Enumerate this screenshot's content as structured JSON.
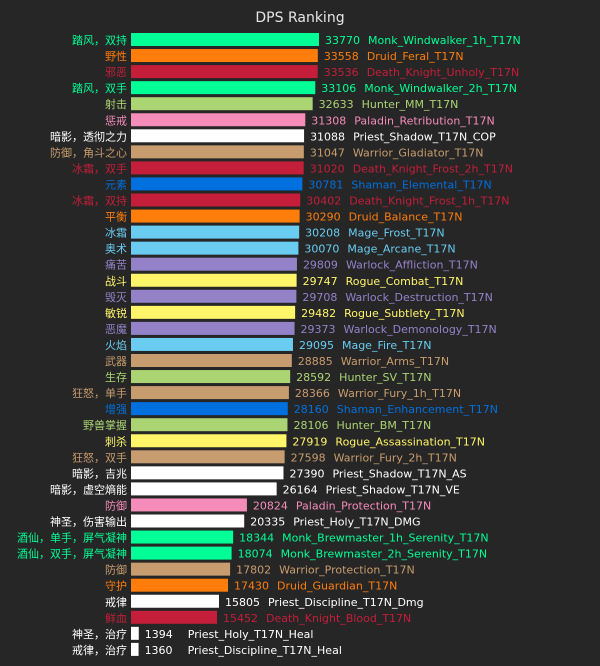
{
  "chart_data": {
    "type": "bar",
    "orientation": "horizontal",
    "title": "DPS Ranking",
    "xlabel": "",
    "ylabel": "",
    "xlim": [
      0,
      33770
    ],
    "grid": false,
    "legend": "none",
    "bars": [
      {
        "spec": "踏风，双持",
        "value": 33770,
        "name": "Monk_Windwalker_1h_T17N",
        "color": "#00ff96"
      },
      {
        "spec": "野性",
        "value": 33558,
        "name": "Druid_Feral_T17N",
        "color": "#ff7d0a"
      },
      {
        "spec": "邪恶",
        "value": 33536,
        "name": "Death_Knight_Unholy_T17N",
        "color": "#c41e3a"
      },
      {
        "spec": "踏风，双手",
        "value": 33106,
        "name": "Monk_Windwalker_2h_T17N",
        "color": "#00ff96"
      },
      {
        "spec": "射击",
        "value": 32633,
        "name": "Hunter_MM_T17N",
        "color": "#abd473"
      },
      {
        "spec": "惩戒",
        "value": 31308,
        "name": "Paladin_Retribution_T17N",
        "color": "#f58cba"
      },
      {
        "spec": "暗影，透彻之力",
        "value": 31088,
        "name": "Priest_Shadow_T17N_COP",
        "color": "#ffffff"
      },
      {
        "spec": "防御，角斗之心",
        "value": 31047,
        "name": "Warrior_Gladiator_T17N",
        "color": "#c79c6e"
      },
      {
        "spec": "冰霜，双手",
        "value": 31020,
        "name": "Death_Knight_Frost_2h_T17N",
        "color": "#c41e3a"
      },
      {
        "spec": "元素",
        "value": 30781,
        "name": "Shaman_Elemental_T17N",
        "color": "#0070de"
      },
      {
        "spec": "冰霜，双持",
        "value": 30402,
        "name": "Death_Knight_Frost_1h_T17N",
        "color": "#c41e3a"
      },
      {
        "spec": "平衡",
        "value": 30290,
        "name": "Druid_Balance_T17N",
        "color": "#ff7d0a"
      },
      {
        "spec": "冰霜",
        "value": 30208,
        "name": "Mage_Frost_T17N",
        "color": "#69ccf0"
      },
      {
        "spec": "奥术",
        "value": 30070,
        "name": "Mage_Arcane_T17N",
        "color": "#69ccf0"
      },
      {
        "spec": "痛苦",
        "value": 29809,
        "name": "Warlock_Affliction_T17N",
        "color": "#9482c9"
      },
      {
        "spec": "战斗",
        "value": 29747,
        "name": "Rogue_Combat_T17N",
        "color": "#fff569"
      },
      {
        "spec": "毁灭",
        "value": 29708,
        "name": "Warlock_Destruction_T17N",
        "color": "#9482c9"
      },
      {
        "spec": "敏锐",
        "value": 29482,
        "name": "Rogue_Subtlety_T17N",
        "color": "#fff569"
      },
      {
        "spec": "恶魔",
        "value": 29373,
        "name": "Warlock_Demonology_T17N",
        "color": "#9482c9"
      },
      {
        "spec": "火焰",
        "value": 29095,
        "name": "Mage_Fire_T17N",
        "color": "#69ccf0"
      },
      {
        "spec": "武器",
        "value": 28885,
        "name": "Warrior_Arms_T17N",
        "color": "#c79c6e"
      },
      {
        "spec": "生存",
        "value": 28592,
        "name": "Hunter_SV_T17N",
        "color": "#abd473"
      },
      {
        "spec": "狂怒，单手",
        "value": 28366,
        "name": "Warrior_Fury_1h_T17N",
        "color": "#c79c6e"
      },
      {
        "spec": "增强",
        "value": 28160,
        "name": "Shaman_Enhancement_T17N",
        "color": "#0070de"
      },
      {
        "spec": "野兽掌握",
        "value": 28106,
        "name": "Hunter_BM_T17N",
        "color": "#abd473"
      },
      {
        "spec": "刺杀",
        "value": 27919,
        "name": "Rogue_Assassination_T17N",
        "color": "#fff569"
      },
      {
        "spec": "狂怒，双手",
        "value": 27598,
        "name": "Warrior_Fury_2h_T17N",
        "color": "#c79c6e"
      },
      {
        "spec": "暗影，吉兆",
        "value": 27390,
        "name": "Priest_Shadow_T17N_AS",
        "color": "#ffffff"
      },
      {
        "spec": "暗影，虚空熵能",
        "value": 26164,
        "name": "Priest_Shadow_T17N_VE",
        "color": "#ffffff"
      },
      {
        "spec": "防御",
        "value": 20824,
        "name": "Paladin_Protection_T17N",
        "color": "#f58cba"
      },
      {
        "spec": "神圣，伤害输出",
        "value": 20335,
        "name": "Priest_Holy_T17N_DMG",
        "color": "#ffffff"
      },
      {
        "spec": "酒仙，单手，屏气凝神",
        "value": 18344,
        "name": "Monk_Brewmaster_1h_Serenity_T17N",
        "color": "#00ff96"
      },
      {
        "spec": "酒仙，双手，屏气凝神",
        "value": 18074,
        "name": "Monk_Brewmaster_2h_Serenity_T17N",
        "color": "#00ff96"
      },
      {
        "spec": "防御",
        "value": 17802,
        "name": "Warrior_Protection_T17N",
        "color": "#c79c6e"
      },
      {
        "spec": "守护",
        "value": 17430,
        "name": "Druid_Guardian_T17N",
        "color": "#ff7d0a"
      },
      {
        "spec": "戒律",
        "value": 15805,
        "name": "Priest_Discipline_T17N_Dmg",
        "color": "#ffffff"
      },
      {
        "spec": "鲜血",
        "value": 15452,
        "name": "Death_Knight_Blood_T17N",
        "color": "#c41e3a"
      },
      {
        "spec": "神圣，治疗",
        "value": 1394,
        "name": "Priest_Holy_T17N_Heal",
        "color": "#ffffff"
      },
      {
        "spec": "戒律，治疗",
        "value": 1360,
        "name": "Priest_Discipline_T17N_Heal",
        "color": "#ffffff"
      }
    ]
  }
}
